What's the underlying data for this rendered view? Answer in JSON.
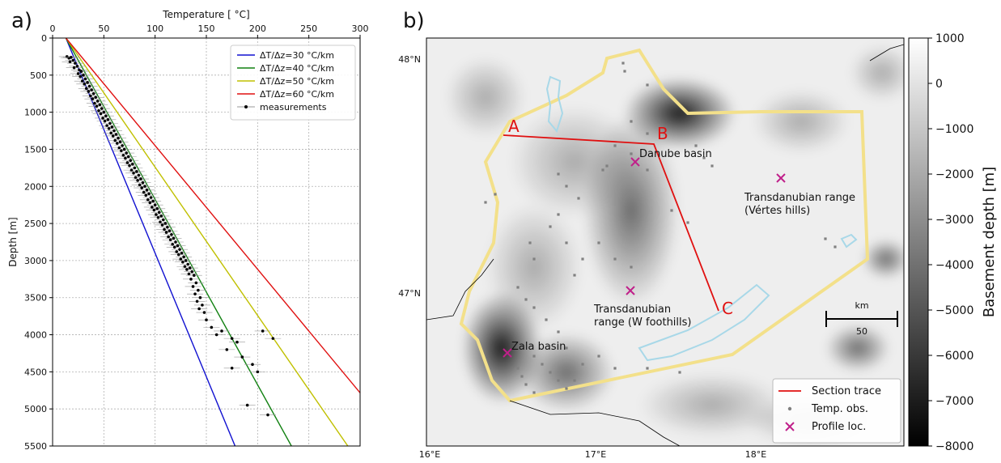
{
  "panels": {
    "a_label": "a)",
    "b_label": "b)"
  },
  "chart_data": [
    {
      "type": "line",
      "xlabel": "Temperature [$^\\circ$C]",
      "xlabel_display": "Temperature [ °C]",
      "ylabel": "Depth [m]",
      "xlim": [
        0,
        300
      ],
      "ylim": [
        5500,
        0
      ],
      "x_ticks": [
        0,
        50,
        100,
        150,
        200,
        250,
        300
      ],
      "y_ticks": [
        0,
        500,
        1000,
        1500,
        2000,
        2500,
        3000,
        3500,
        4000,
        4500,
        5000,
        5500
      ],
      "grid": true,
      "legend_position": "top-right",
      "surface_temperature": 13,
      "series": [
        {
          "name": "ΔT/Δz=30 °C/km",
          "gradient_c_per_km": 30,
          "color": "#1010d0"
        },
        {
          "name": "ΔT/Δz=40 °C/km",
          "gradient_c_per_km": 40,
          "color": "#108010"
        },
        {
          "name": "ΔT/Δz=50 °C/km",
          "gradient_c_per_km": 50,
          "color": "#c0c000"
        },
        {
          "name": "ΔT/Δz=60 °C/km",
          "gradient_c_per_km": 60,
          "color": "#e01010"
        }
      ],
      "measurements": {
        "name": "measurements",
        "color": "#000000",
        "points": [
          [
            14,
            250
          ],
          [
            16,
            270
          ],
          [
            18,
            260
          ],
          [
            20,
            300
          ],
          [
            17,
            320
          ],
          [
            22,
            340
          ],
          [
            24,
            380
          ],
          [
            21,
            400
          ],
          [
            26,
            430
          ],
          [
            28,
            450
          ],
          [
            25,
            480
          ],
          [
            30,
            500
          ],
          [
            27,
            520
          ],
          [
            32,
            550
          ],
          [
            29,
            580
          ],
          [
            34,
            600
          ],
          [
            31,
            620
          ],
          [
            36,
            650
          ],
          [
            33,
            680
          ],
          [
            38,
            700
          ],
          [
            35,
            720
          ],
          [
            40,
            750
          ],
          [
            37,
            780
          ],
          [
            42,
            800
          ],
          [
            39,
            820
          ],
          [
            44,
            850
          ],
          [
            41,
            880
          ],
          [
            46,
            900
          ],
          [
            43,
            920
          ],
          [
            48,
            950
          ],
          [
            45,
            980
          ],
          [
            50,
            1000
          ],
          [
            47,
            1020
          ],
          [
            52,
            1050
          ],
          [
            49,
            1080
          ],
          [
            54,
            1100
          ],
          [
            51,
            1120
          ],
          [
            56,
            1150
          ],
          [
            53,
            1180
          ],
          [
            58,
            1200
          ],
          [
            55,
            1220
          ],
          [
            60,
            1250
          ],
          [
            57,
            1280
          ],
          [
            62,
            1300
          ],
          [
            59,
            1320
          ],
          [
            64,
            1350
          ],
          [
            61,
            1380
          ],
          [
            66,
            1400
          ],
          [
            63,
            1420
          ],
          [
            68,
            1450
          ],
          [
            65,
            1480
          ],
          [
            70,
            1500
          ],
          [
            67,
            1520
          ],
          [
            72,
            1550
          ],
          [
            69,
            1580
          ],
          [
            74,
            1600
          ],
          [
            71,
            1620
          ],
          [
            76,
            1650
          ],
          [
            73,
            1680
          ],
          [
            78,
            1700
          ],
          [
            75,
            1720
          ],
          [
            80,
            1750
          ],
          [
            77,
            1780
          ],
          [
            82,
            1800
          ],
          [
            79,
            1820
          ],
          [
            84,
            1850
          ],
          [
            81,
            1880
          ],
          [
            86,
            1900
          ],
          [
            83,
            1920
          ],
          [
            88,
            1950
          ],
          [
            85,
            1980
          ],
          [
            90,
            2000
          ],
          [
            87,
            2020
          ],
          [
            92,
            2050
          ],
          [
            89,
            2080
          ],
          [
            94,
            2100
          ],
          [
            91,
            2120
          ],
          [
            96,
            2150
          ],
          [
            93,
            2180
          ],
          [
            98,
            2200
          ],
          [
            95,
            2220
          ],
          [
            100,
            2250
          ],
          [
            97,
            2280
          ],
          [
            102,
            2300
          ],
          [
            99,
            2320
          ],
          [
            104,
            2350
          ],
          [
            101,
            2380
          ],
          [
            106,
            2400
          ],
          [
            103,
            2420
          ],
          [
            108,
            2450
          ],
          [
            105,
            2480
          ],
          [
            110,
            2500
          ],
          [
            107,
            2520
          ],
          [
            112,
            2550
          ],
          [
            109,
            2580
          ],
          [
            114,
            2600
          ],
          [
            111,
            2620
          ],
          [
            116,
            2650
          ],
          [
            113,
            2680
          ],
          [
            118,
            2700
          ],
          [
            115,
            2720
          ],
          [
            120,
            2750
          ],
          [
            117,
            2780
          ],
          [
            122,
            2800
          ],
          [
            119,
            2820
          ],
          [
            124,
            2850
          ],
          [
            121,
            2880
          ],
          [
            126,
            2900
          ],
          [
            123,
            2920
          ],
          [
            128,
            2950
          ],
          [
            125,
            2980
          ],
          [
            130,
            3000
          ],
          [
            127,
            3020
          ],
          [
            132,
            3050
          ],
          [
            129,
            3080
          ],
          [
            134,
            3100
          ],
          [
            131,
            3120
          ],
          [
            136,
            3150
          ],
          [
            133,
            3180
          ],
          [
            138,
            3200
          ],
          [
            135,
            3250
          ],
          [
            140,
            3300
          ],
          [
            137,
            3350
          ],
          [
            142,
            3400
          ],
          [
            139,
            3450
          ],
          [
            144,
            3500
          ],
          [
            141,
            3550
          ],
          [
            146,
            3600
          ],
          [
            143,
            3650
          ],
          [
            148,
            3700
          ],
          [
            150,
            3800
          ],
          [
            155,
            3900
          ],
          [
            160,
            4000
          ],
          [
            165,
            3950
          ],
          [
            175,
            4050
          ],
          [
            180,
            4100
          ],
          [
            170,
            4200
          ],
          [
            185,
            4300
          ],
          [
            175,
            4450
          ],
          [
            195,
            4400
          ],
          [
            200,
            4500
          ],
          [
            190,
            4950
          ],
          [
            210,
            5080
          ],
          [
            205,
            3950
          ],
          [
            215,
            4050
          ]
        ]
      }
    },
    {
      "type": "heatmap",
      "description_text": [],
      "x_ticks": [
        "16°E",
        "17°E",
        "18°E"
      ],
      "y_ticks": [
        "48°N",
        "47°N"
      ],
      "colorbar": {
        "label": "Basement depth [m]",
        "min": -8000,
        "max": 1000,
        "ticks": [
          1000,
          0,
          -1000,
          -2000,
          -3000,
          -4000,
          -5000,
          -6000,
          -7000,
          -8000
        ],
        "tick_labels": [
          "1000",
          "0",
          "−1000",
          "−2000",
          "−3000",
          "−4000",
          "−5000",
          "−6000",
          "−7000",
          "−8000"
        ],
        "colormap": "gray"
      },
      "section_points": {
        "A": "A",
        "B": "B",
        "C": "C"
      },
      "labels": {
        "danube": "Danube basin",
        "trans_v1": "Transdanubian range",
        "trans_v2": "(Vértes hills)",
        "trans_w1": "Transdanubian",
        "trans_w2": "range (W foothills)",
        "zala": "Zala basin"
      },
      "scalebar": {
        "unit": "km",
        "value": "50"
      },
      "legend_position": "bottom-right",
      "legend": [
        {
          "name": "Section trace",
          "color": "#e01010",
          "marker": "line"
        },
        {
          "name": "Temp. obs.",
          "color": "#808080",
          "marker": "dot"
        },
        {
          "name": "Profile loc.",
          "color": "#c0208a",
          "marker": "x"
        }
      ]
    }
  ]
}
